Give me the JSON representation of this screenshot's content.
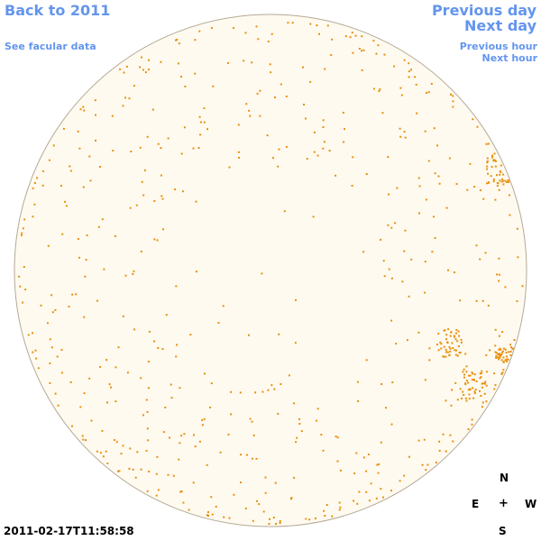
{
  "nav": {
    "back_label": "Back to 2011",
    "facular_label": "See facular data",
    "prev_day_label": "Previous day",
    "next_day_label": "Next day",
    "prev_hour_label": "Previous hour",
    "next_hour_label": "Next hour"
  },
  "compass": {
    "north": "N",
    "east": "E",
    "center": "+",
    "west": "W",
    "south": "S"
  },
  "timestamp": "2011-02-17T11:58:58",
  "colors": {
    "link": "#6495ed",
    "disk_fill": "#fffaf0",
    "disk_edge": "#b4aa96",
    "spot": "#e8900c"
  }
}
